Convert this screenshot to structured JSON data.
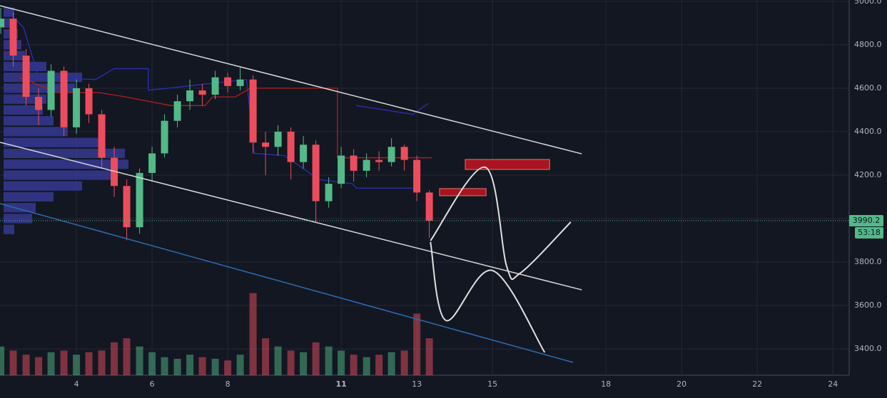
{
  "chart_data": {
    "type": "candlestick",
    "x": [
      2,
      2.33,
      2.67,
      3,
      3.33,
      3.67,
      4,
      4.33,
      4.67,
      5,
      5.33,
      5.67,
      6,
      6.33,
      6.67,
      7,
      7.33,
      7.67,
      8,
      8.33,
      8.67,
      9,
      9.33,
      9.67,
      10,
      10.33,
      10.67,
      11,
      11.33,
      11.67,
      12,
      12.33,
      12.67,
      13,
      13.33
    ],
    "open": [
      4880,
      4920,
      4750,
      4560,
      4500,
      4680,
      4420,
      4600,
      4480,
      4280,
      4150,
      3960,
      4210,
      4300,
      4450,
      4540,
      4590,
      4570,
      4650,
      4610,
      4640,
      4350,
      4330,
      4400,
      4260,
      4340,
      4080,
      4160,
      4290,
      4220,
      4270,
      4260,
      4330,
      4270,
      4120
    ],
    "high": [
      4970,
      4950,
      4780,
      4600,
      4710,
      4700,
      4640,
      4620,
      4500,
      4330,
      4180,
      4230,
      4330,
      4480,
      4570,
      4640,
      4620,
      4680,
      4670,
      4700,
      4660,
      4400,
      4430,
      4420,
      4380,
      4360,
      4190,
      4330,
      4320,
      4300,
      4310,
      4370,
      4340,
      4290,
      4130
    ],
    "low": [
      4850,
      4700,
      4520,
      4430,
      4470,
      4380,
      4390,
      4440,
      4230,
      4100,
      3900,
      3930,
      4170,
      4280,
      4420,
      4500,
      4520,
      4550,
      4580,
      4590,
      4300,
      4200,
      4290,
      4180,
      4230,
      3980,
      4050,
      4140,
      4170,
      4190,
      4220,
      4240,
      4220,
      4080,
      3910
    ],
    "close": [
      4920,
      4750,
      4560,
      4500,
      4680,
      4420,
      4600,
      4480,
      4280,
      4150,
      3960,
      4210,
      4300,
      4450,
      4540,
      4590,
      4570,
      4650,
      4610,
      4640,
      4350,
      4330,
      4400,
      4260,
      4340,
      4080,
      4160,
      4290,
      4220,
      4270,
      4260,
      4330,
      4270,
      4120,
      3990.2
    ],
    "volume": [
      35,
      30,
      25,
      22,
      28,
      30,
      25,
      28,
      30,
      40,
      45,
      35,
      28,
      22,
      20,
      25,
      22,
      20,
      18,
      25,
      100,
      45,
      35,
      30,
      28,
      40,
      35,
      30,
      25,
      22,
      25,
      28,
      30,
      75,
      45
    ],
    "volume_ylim": [
      0,
      130
    ],
    "up_color": "#53b987",
    "down_color": "#eb4d5c",
    "xlim": [
      1.98,
      24.43
    ],
    "ylim": [
      3279,
      5006
    ],
    "xticks": [
      4,
      6,
      8,
      11,
      13,
      15,
      18,
      20,
      22,
      24
    ],
    "yticks": [
      {
        "value": 3400,
        "label": "3400.0"
      },
      {
        "value": 3600,
        "label": "3600.0"
      },
      {
        "value": 3800,
        "label": "3800.0"
      },
      {
        "value": 4000,
        "label": "4000.0"
      },
      {
        "value": 4200,
        "label": "4200.0"
      },
      {
        "value": 4400,
        "label": "4400.0"
      },
      {
        "value": 4600,
        "label": "4600.0"
      },
      {
        "value": 4800,
        "label": "4800.0"
      },
      {
        "value": 5000,
        "label": "5000.0"
      }
    ],
    "grid": true,
    "last_price": 3990.2,
    "last_price_color": "#53b987",
    "countdown": "53:18",
    "indicators": [
      {
        "color": "#2a2fb8",
        "x": [
          2.2,
          2.6,
          3,
          4.5,
          5,
          5.9,
          5.9,
          8.5,
          8.7,
          9.5,
          10,
          10.4,
          11.3,
          11.4,
          13
        ],
        "y": [
          4950,
          4880,
          4650,
          4640,
          4690,
          4690,
          4590,
          4640,
          4300,
          4290,
          4230,
          4180,
          4160,
          4140,
          4140
        ]
      },
      {
        "color": "#2a2fb8",
        "x": [
          11.4,
          12.9,
          13.3
        ],
        "y": [
          4520,
          4480,
          4530
        ]
      },
      {
        "color": "#b71c1c",
        "x": [
          2.5,
          3.5,
          4.6,
          5.3,
          6.5,
          7.4,
          7.6,
          8.2,
          8.6,
          10.9,
          10.9,
          13.4
        ],
        "y": [
          4650,
          4580,
          4580,
          4560,
          4520,
          4520,
          4560,
          4560,
          4600,
          4600,
          4280,
          4280
        ]
      }
    ],
    "volume_profile": {
      "color": "#3c40a8",
      "levels": [
        4950,
        4900,
        4850,
        4800,
        4750,
        4700,
        4650,
        4600,
        4550,
        4500,
        4450,
        4400,
        4350,
        4300,
        4250,
        4200,
        4150,
        4100,
        4050,
        4000,
        3950
      ],
      "values": [
        15,
        10,
        20,
        25,
        30,
        60,
        110,
        100,
        60,
        55,
        70,
        90,
        140,
        170,
        175,
        155,
        110,
        70,
        45,
        40,
        15
      ],
      "xlim": [
        0,
        300
      ]
    },
    "trend_lines": [
      {
        "color": "#d8d8d8",
        "x": [
          1.98,
          17.36
        ],
        "y": [
          4980,
          4298
        ]
      },
      {
        "color": "#d8d8d8",
        "x": [
          1.98,
          17.36
        ],
        "y": [
          4351,
          3672
        ]
      },
      {
        "color": "#2a6db5",
        "x": [
          1.98,
          17.13
        ],
        "y": [
          4069,
          3338
        ]
      }
    ],
    "boxes": [
      {
        "color": "#a8141f",
        "x": [
          14.28,
          16.51
        ],
        "y": [
          4272,
          4226
        ]
      },
      {
        "color": "#a8141f",
        "x": [
          13.6,
          14.83
        ],
        "y": [
          4138,
          4105
        ]
      }
    ],
    "curves": [
      {
        "color": "#e0e0e0",
        "x": [
          13.36,
          14.81,
          15.38,
          15.75,
          17.07
        ],
        "y": [
          3898,
          4236,
          3777,
          3751,
          3984
        ]
      },
      {
        "color": "#e0e0e0",
        "x": [
          13.36,
          13.77,
          15,
          16.38
        ],
        "y": [
          3892,
          3531,
          3761,
          3384
        ]
      }
    ]
  }
}
